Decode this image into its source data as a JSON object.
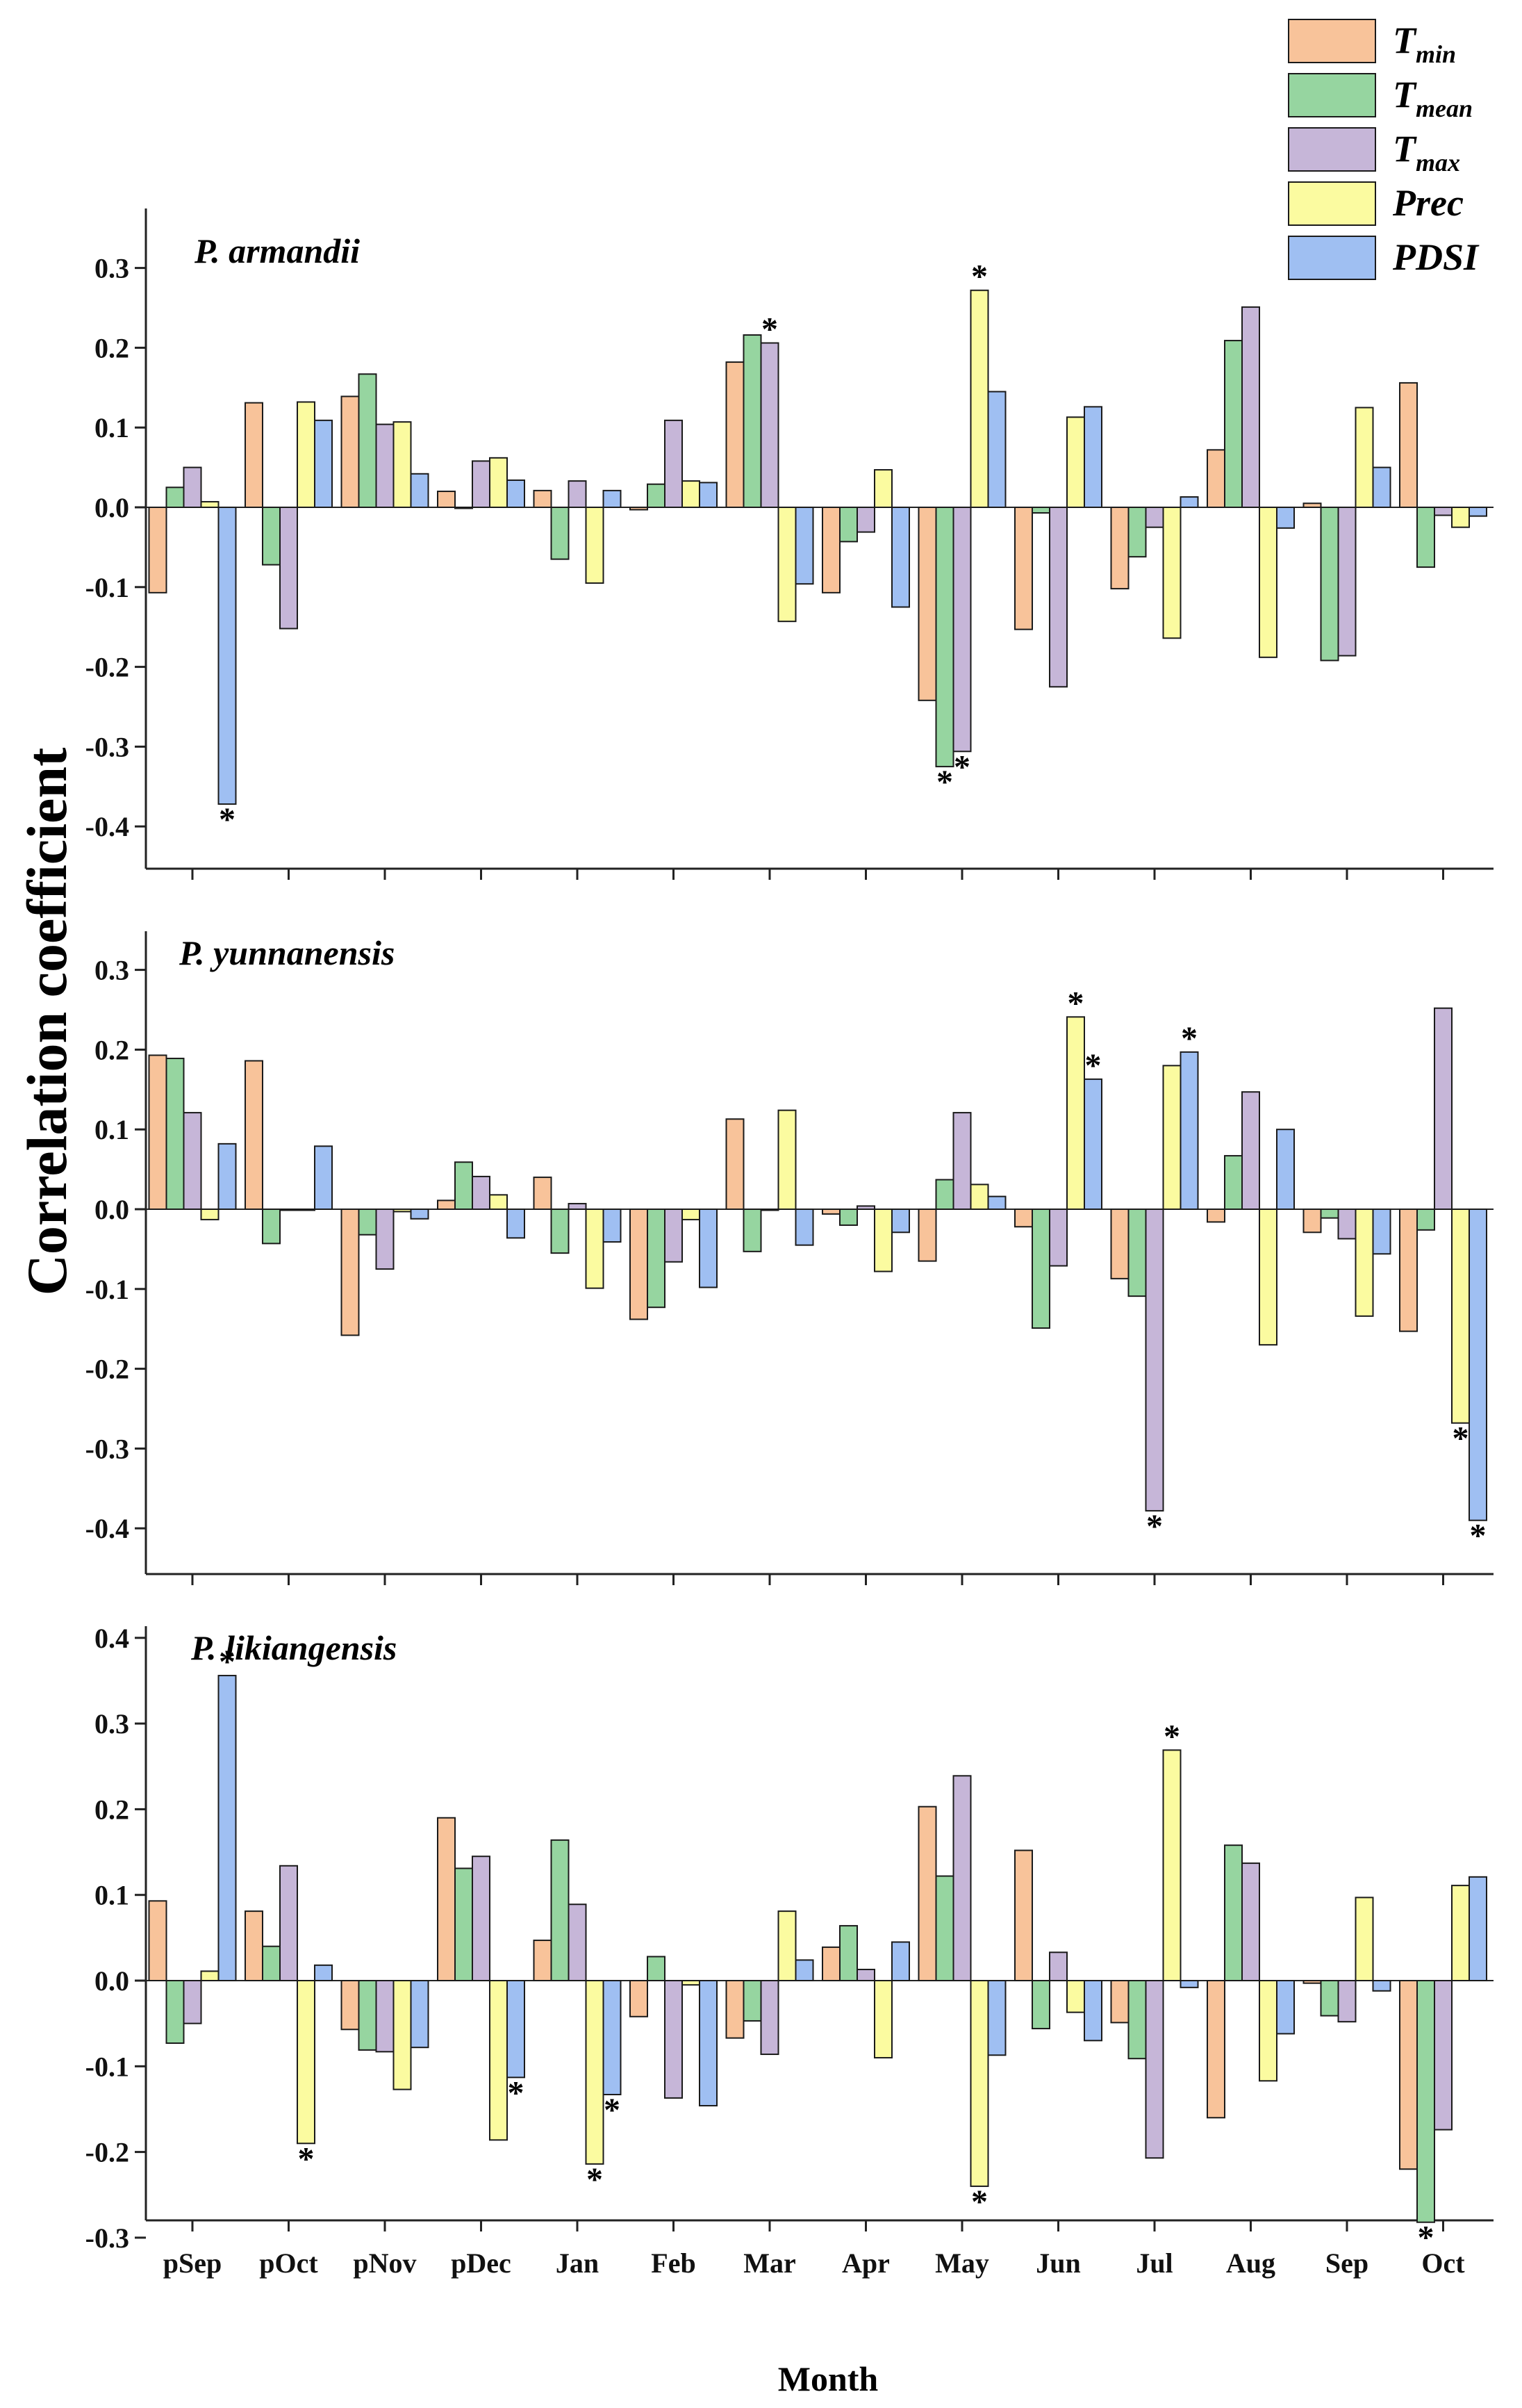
{
  "chart_data": {
    "type": "bar",
    "ylabel": "Correlation coefficient",
    "xlabel": "Month",
    "categories": [
      "pSep",
      "pOct",
      "pNov",
      "pDec",
      "Jan",
      "Feb",
      "Mar",
      "Apr",
      "May",
      "Jun",
      "Jul",
      "Aug",
      "Sep",
      "Oct"
    ],
    "legend": [
      {
        "name": "T",
        "sub": "min",
        "color": "#f8c39a"
      },
      {
        "name": "T",
        "sub": "mean",
        "color": "#96d5a0"
      },
      {
        "name": "T",
        "sub": "max",
        "color": "#c6b6d8"
      },
      {
        "name": "Prec",
        "sub": "",
        "color": "#fbfba0"
      },
      {
        "name": "PDSI",
        "sub": "",
        "color": "#9fbff2"
      }
    ],
    "legend_position": "top-right",
    "panels": [
      {
        "title": "P. armandii",
        "ylim": [
          -0.45,
          0.35
        ],
        "yticks": [
          "0.3",
          "0.2",
          "0.1",
          "0.0",
          "-0.1",
          "-0.2",
          "-0.3",
          "-0.4"
        ],
        "ytick_values": [
          0.3,
          0.2,
          0.1,
          0.0,
          -0.1,
          -0.2,
          -0.3,
          -0.4
        ],
        "series": [
          {
            "name": "Tmin",
            "values": [
              -0.107,
              0.131,
              0.139,
              0.02,
              0.021,
              -0.003,
              0.182,
              -0.107,
              -0.242,
              -0.153,
              -0.102,
              0.072,
              0.005,
              0.156
            ]
          },
          {
            "name": "Tmean",
            "values": [
              0.025,
              -0.072,
              0.167,
              0.0,
              -0.065,
              0.029,
              0.216,
              -0.043,
              -0.325,
              -0.007,
              -0.062,
              0.209,
              -0.192,
              -0.075
            ]
          },
          {
            "name": "Tmax",
            "values": [
              0.05,
              -0.152,
              0.104,
              0.058,
              0.033,
              0.109,
              0.206,
              -0.031,
              -0.306,
              -0.225,
              -0.025,
              0.251,
              -0.186,
              -0.01
            ]
          },
          {
            "name": "Prec",
            "values": [
              0.007,
              0.132,
              0.107,
              0.062,
              -0.095,
              0.033,
              -0.143,
              0.047,
              0.272,
              0.113,
              -0.164,
              -0.188,
              0.125,
              -0.025
            ]
          },
          {
            "name": "PDSI",
            "values": [
              -0.372,
              0.109,
              0.042,
              0.034,
              0.021,
              0.031,
              -0.096,
              -0.125,
              0.145,
              0.126,
              0.013,
              -0.026,
              0.05,
              -0.011
            ]
          }
        ],
        "significant": [
          {
            "category": "pSep",
            "series": "PDSI",
            "label": "*"
          },
          {
            "category": "Mar",
            "series": "Tmax",
            "label": "*"
          },
          {
            "category": "May",
            "series": "Prec",
            "label": "*"
          },
          {
            "category": "May",
            "series": "Tmean",
            "label": "*"
          },
          {
            "category": "May",
            "series": "Tmax",
            "label": "*"
          }
        ]
      },
      {
        "title": "P. yunnanensis",
        "ylim": [
          -0.45,
          0.35
        ],
        "yticks": [
          "0.3",
          "0.2",
          "0.1",
          "0.0",
          "-0.1",
          "-0.2",
          "-0.3",
          "-0.4"
        ],
        "ytick_values": [
          0.3,
          0.2,
          0.1,
          0.0,
          -0.1,
          -0.2,
          -0.3,
          -0.4
        ],
        "series": [
          {
            "name": "Tmin",
            "values": [
              0.193,
              0.186,
              -0.158,
              0.011,
              0.04,
              -0.138,
              0.113,
              -0.006,
              -0.065,
              -0.022,
              -0.087,
              -0.016,
              -0.029,
              -0.153
            ]
          },
          {
            "name": "Tmean",
            "values": [
              0.189,
              -0.043,
              -0.032,
              0.059,
              -0.055,
              -0.123,
              -0.053,
              -0.02,
              0.037,
              -0.149,
              -0.109,
              0.067,
              -0.011,
              -0.026
            ]
          },
          {
            "name": "Tmax",
            "values": [
              0.121,
              0.0,
              -0.075,
              0.041,
              0.007,
              -0.066,
              0.0,
              0.004,
              0.121,
              -0.071,
              -0.378,
              0.147,
              -0.037,
              0.252
            ]
          },
          {
            "name": "Prec",
            "values": [
              -0.013,
              0.0,
              -0.003,
              0.018,
              -0.099,
              -0.013,
              0.124,
              -0.078,
              0.031,
              0.241,
              0.18,
              -0.17,
              -0.134,
              -0.268
            ]
          },
          {
            "name": "PDSI",
            "values": [
              0.082,
              0.079,
              -0.012,
              -0.036,
              -0.041,
              -0.098,
              -0.045,
              -0.029,
              0.016,
              0.163,
              0.197,
              0.1,
              -0.056,
              -0.39
            ]
          }
        ],
        "significant": [
          {
            "category": "Jun",
            "series": "Prec",
            "label": "*"
          },
          {
            "category": "Jun",
            "series": "PDSI",
            "label": "*"
          },
          {
            "category": "Jul",
            "series": "PDSI",
            "label": "*"
          },
          {
            "category": "Jul",
            "series": "Tmax",
            "label": "*"
          },
          {
            "category": "Oct",
            "series": "Prec",
            "label": "*"
          },
          {
            "category": "Oct",
            "series": "PDSI",
            "label": "*"
          }
        ]
      },
      {
        "title": "P. likiangensis",
        "ylim": [
          -0.33,
          0.42
        ],
        "yticks": [
          "0.4",
          "0.3",
          "0.2",
          "0.1",
          "0.0",
          "-0.1",
          "-0.2",
          "-0.3"
        ],
        "ytick_values": [
          0.4,
          0.3,
          0.2,
          0.1,
          0.0,
          -0.1,
          -0.2,
          -0.3
        ],
        "series": [
          {
            "name": "Tmin",
            "values": [
              0.093,
              0.081,
              -0.057,
              0.19,
              0.047,
              -0.042,
              -0.067,
              0.039,
              0.203,
              0.152,
              -0.049,
              -0.16,
              -0.003,
              -0.22
            ]
          },
          {
            "name": "Tmean",
            "values": [
              -0.073,
              0.04,
              -0.081,
              0.131,
              0.164,
              0.028,
              -0.047,
              0.064,
              0.122,
              -0.056,
              -0.091,
              0.158,
              -0.041,
              -0.282
            ]
          },
          {
            "name": "Tmax",
            "values": [
              -0.05,
              0.134,
              -0.083,
              0.145,
              0.089,
              -0.137,
              -0.086,
              0.013,
              0.239,
              0.033,
              -0.207,
              0.137,
              -0.048,
              -0.174
            ]
          },
          {
            "name": "Prec",
            "values": [
              0.011,
              -0.19,
              -0.127,
              -0.186,
              -0.214,
              -0.005,
              0.081,
              -0.09,
              -0.24,
              -0.037,
              0.269,
              -0.117,
              0.097,
              0.111
            ]
          },
          {
            "name": "PDSI",
            "values": [
              0.356,
              0.018,
              -0.078,
              -0.113,
              -0.133,
              -0.146,
              0.024,
              0.045,
              -0.087,
              -0.07,
              -0.008,
              -0.062,
              -0.012,
              0.121
            ]
          }
        ],
        "significant": [
          {
            "category": "pSep",
            "series": "PDSI",
            "label": "*"
          },
          {
            "category": "pOct",
            "series": "Prec",
            "label": "*"
          },
          {
            "category": "pDec",
            "series": "PDSI",
            "label": "*"
          },
          {
            "category": "Jan",
            "series": "Prec",
            "label": "*"
          },
          {
            "category": "Jan",
            "series": "PDSI",
            "label": "*"
          },
          {
            "category": "May",
            "series": "Prec",
            "label": "*"
          },
          {
            "category": "Jul",
            "series": "Prec",
            "label": "*"
          },
          {
            "category": "Oct",
            "series": "Tmean",
            "label": "*"
          }
        ]
      }
    ]
  }
}
